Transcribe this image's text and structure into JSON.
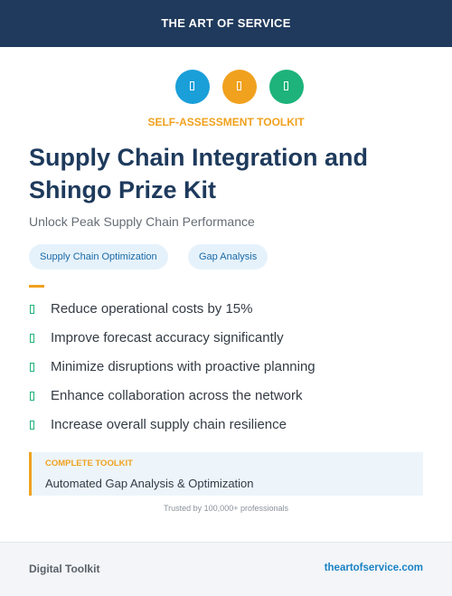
{
  "header": {
    "brand": "THE ART OF SERVICE"
  },
  "cover": {
    "kicker": "SELF-ASSESSMENT TOOLKIT",
    "title": "Supply Chain Integration and Shingo Prize Kit",
    "subtitle": "Unlock Peak Supply Chain Performance",
    "tags": [
      "Supply Chain Optimization",
      "Gap Analysis"
    ]
  },
  "benefits": [
    "Reduce operational costs by 15%",
    "Improve forecast accuracy significantly",
    "Minimize disruptions with proactive planning",
    "Enhance collaboration across the network",
    "Increase overall supply chain resilience"
  ],
  "callout": {
    "label": "COMPLETE TOOLKIT",
    "text": "Automated Gap Analysis & Optimization"
  },
  "trust": "Trusted by 100,000+ professionals",
  "footer": {
    "left": "Digital Toolkit",
    "right": "theartofservice.com"
  }
}
